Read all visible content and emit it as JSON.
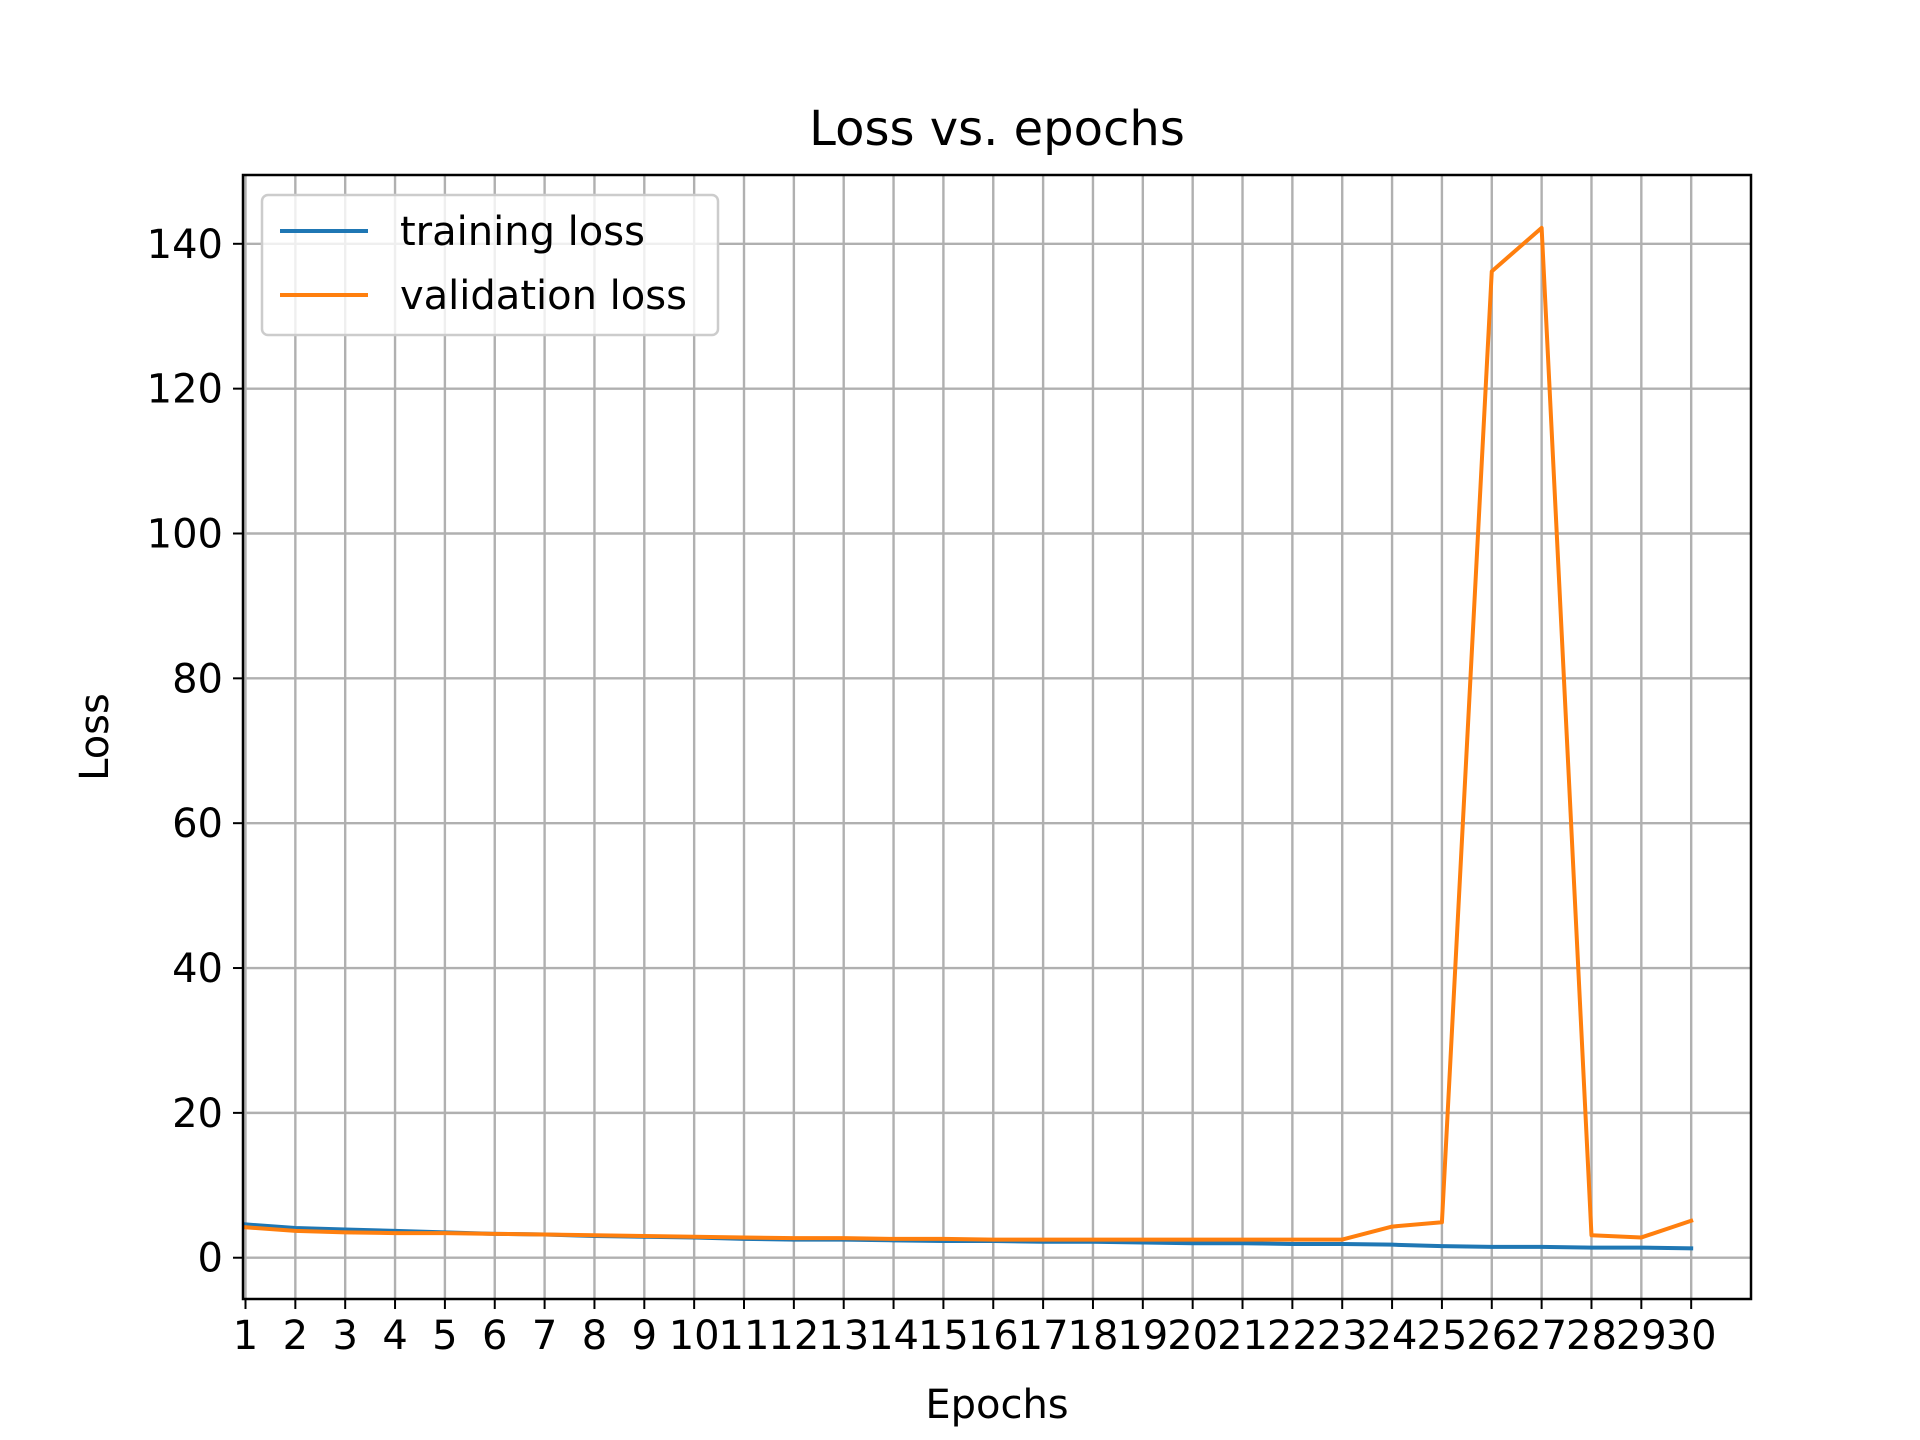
{
  "chart_data": {
    "type": "line",
    "title": "Loss vs. epochs",
    "xlabel": "Epochs",
    "ylabel": "Loss",
    "x": [
      1,
      2,
      3,
      4,
      5,
      6,
      7,
      8,
      9,
      10,
      11,
      12,
      13,
      14,
      15,
      16,
      17,
      18,
      19,
      20,
      21,
      22,
      23,
      24,
      25,
      26,
      27,
      28,
      29,
      30
    ],
    "xlim": [
      0.95,
      31.2
    ],
    "ylim": [
      -5.7,
      149.5
    ],
    "yticks": [
      0,
      20,
      40,
      60,
      80,
      100,
      120,
      140
    ],
    "xticks": [
      1,
      2,
      3,
      4,
      5,
      6,
      7,
      8,
      9,
      10,
      11,
      12,
      13,
      14,
      15,
      16,
      17,
      18,
      19,
      20,
      21,
      22,
      23,
      24,
      25,
      26,
      27,
      28,
      29,
      30
    ],
    "grid": true,
    "legend_position": "top-left",
    "series": [
      {
        "name": "training loss",
        "color": "#1f77b4",
        "values": [
          4.6,
          4.1,
          3.9,
          3.7,
          3.5,
          3.3,
          3.2,
          3.0,
          2.9,
          2.8,
          2.6,
          2.5,
          2.5,
          2.4,
          2.3,
          2.3,
          2.2,
          2.2,
          2.1,
          2.0,
          2.0,
          1.9,
          1.9,
          1.8,
          1.6,
          1.5,
          1.5,
          1.4,
          1.4,
          1.3
        ]
      },
      {
        "name": "validation loss",
        "color": "#ff7f0e",
        "values": [
          4.2,
          3.7,
          3.5,
          3.4,
          3.4,
          3.3,
          3.2,
          3.1,
          3.0,
          2.9,
          2.8,
          2.7,
          2.7,
          2.6,
          2.6,
          2.5,
          2.5,
          2.5,
          2.5,
          2.5,
          2.5,
          2.5,
          2.5,
          4.3,
          4.9,
          136.2,
          142.2,
          3.1,
          2.8,
          5.1
        ]
      }
    ]
  }
}
